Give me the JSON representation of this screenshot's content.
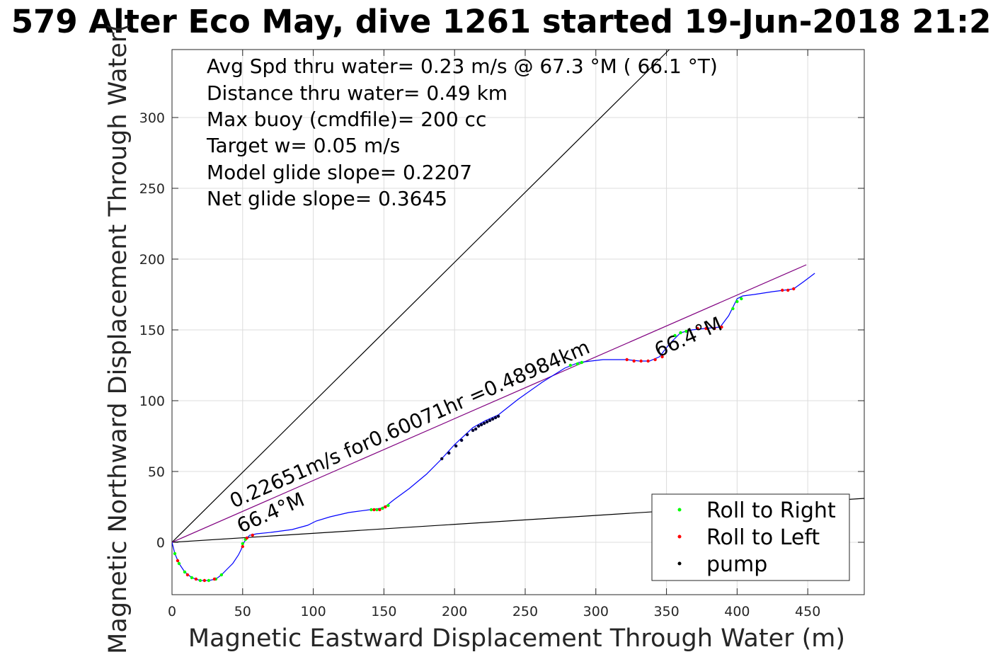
{
  "chart_data": {
    "type": "line",
    "title": "579 Alter Eco May, dive 1261 started 19-Jun-2018 21:2",
    "xlabel": "Magnetic Eastward Displacement Through Water (m)",
    "ylabel": "Magnetic Northward Displacement Through Water(",
    "xlim": [
      0,
      490
    ],
    "ylim": [
      -37,
      348
    ],
    "xticks": [
      0,
      50,
      100,
      150,
      200,
      250,
      300,
      350,
      400,
      450
    ],
    "yticks": [
      0,
      50,
      100,
      150,
      200,
      250,
      300
    ],
    "grid": true,
    "info_lines": [
      "Avg Spd thru water=  0.23 m/s @  67.3 °M ( 66.1 °T)",
      "Distance thru water=  0.49 km",
      "Max buoy (cmdfile)= 200 cc",
      "Target w= 0.05 m/s",
      "Model glide slope= 0.2207",
      "Net glide slope= 0.3645"
    ],
    "annotations": {
      "segment_label": "0.22651m/s for0.60071hr =0.48984km",
      "heading_start": "66.4°M",
      "heading_end": "66.4°M"
    },
    "series": [
      {
        "name": "track",
        "color": "#0000ff",
        "x": [
          0,
          2,
          5,
          9,
          14,
          20,
          26,
          31,
          35,
          39,
          43,
          47,
          49,
          50,
          51,
          53,
          55,
          60,
          70,
          85,
          96,
          102,
          112,
          125,
          140,
          148,
          152,
          157,
          168,
          180,
          190,
          200,
          213,
          222,
          231,
          245,
          262,
          278,
          288,
          305,
          322,
          331,
          338,
          345,
          352,
          360,
          368,
          377,
          388,
          394,
          398,
          400,
          404,
          412,
          425,
          433,
          440,
          447,
          455
        ],
        "y": [
          0,
          -8,
          -15,
          -21,
          -25,
          -27,
          -27,
          -26,
          -23,
          -19,
          -15,
          -9,
          -5,
          -2,
          0,
          3,
          5,
          6,
          7,
          9,
          12,
          15,
          18,
          21,
          23,
          24,
          26,
          30,
          38,
          48,
          58,
          69,
          81,
          86,
          90,
          101,
          113,
          123,
          127,
          129,
          129,
          128,
          128,
          131,
          140,
          148,
          150,
          151,
          152,
          160,
          168,
          172,
          174,
          175,
          177,
          178,
          179,
          184,
          190
        ]
      },
      {
        "name": "Roll to Right",
        "color": "#00ff00",
        "x": [
          2,
          5,
          9,
          14,
          20,
          26,
          31,
          35,
          50,
          52,
          141,
          145,
          149,
          153,
          282,
          287,
          290,
          356,
          360,
          364,
          397,
          400,
          403
        ],
        "y": [
          -8,
          -15,
          -21,
          -25,
          -27,
          -27,
          -26,
          -23,
          -1,
          2,
          23,
          23,
          24,
          26,
          125,
          126,
          127,
          146,
          148,
          149,
          165,
          170,
          172
        ]
      },
      {
        "name": "Roll to Left",
        "color": "#ff0000",
        "x": [
          4,
          11,
          17,
          23,
          30,
          50,
          53,
          57,
          143,
          147,
          151,
          322,
          327,
          332,
          337,
          342,
          347,
          372,
          378,
          384,
          389,
          432,
          436,
          440
        ],
        "y": [
          -13,
          -23,
          -26,
          -27,
          -26,
          -3,
          3,
          5,
          23,
          23,
          25,
          129,
          128,
          128,
          128,
          129,
          131,
          151,
          151,
          151,
          152,
          178,
          178,
          179
        ]
      },
      {
        "name": "pump",
        "color": "#000033",
        "x": [
          191,
          196,
          201,
          205,
          209,
          213,
          215,
          217,
          219,
          221,
          223,
          225,
          227,
          229,
          231
        ],
        "y": [
          59,
          63,
          68,
          72,
          76,
          79,
          80,
          82,
          83,
          84,
          85,
          86,
          87,
          88,
          89
        ]
      }
    ],
    "reference_lines": [
      {
        "name": "upper-bound",
        "color": "#000000",
        "x": [
          0,
          352
        ],
        "y": [
          0,
          348
        ]
      },
      {
        "name": "lower-bound",
        "color": "#000000",
        "x": [
          0,
          490
        ],
        "y": [
          0,
          31
        ]
      },
      {
        "name": "net-heading",
        "color": "#800080",
        "x": [
          0,
          449
        ],
        "y": [
          0,
          196
        ]
      }
    ]
  },
  "legend": {
    "position": "bottom-right",
    "items": [
      {
        "label": "Roll to Right",
        "color": "#00ff00"
      },
      {
        "label": "Roll to Left",
        "color": "#ff0000"
      },
      {
        "label": "pump",
        "color": "#000000"
      }
    ]
  }
}
